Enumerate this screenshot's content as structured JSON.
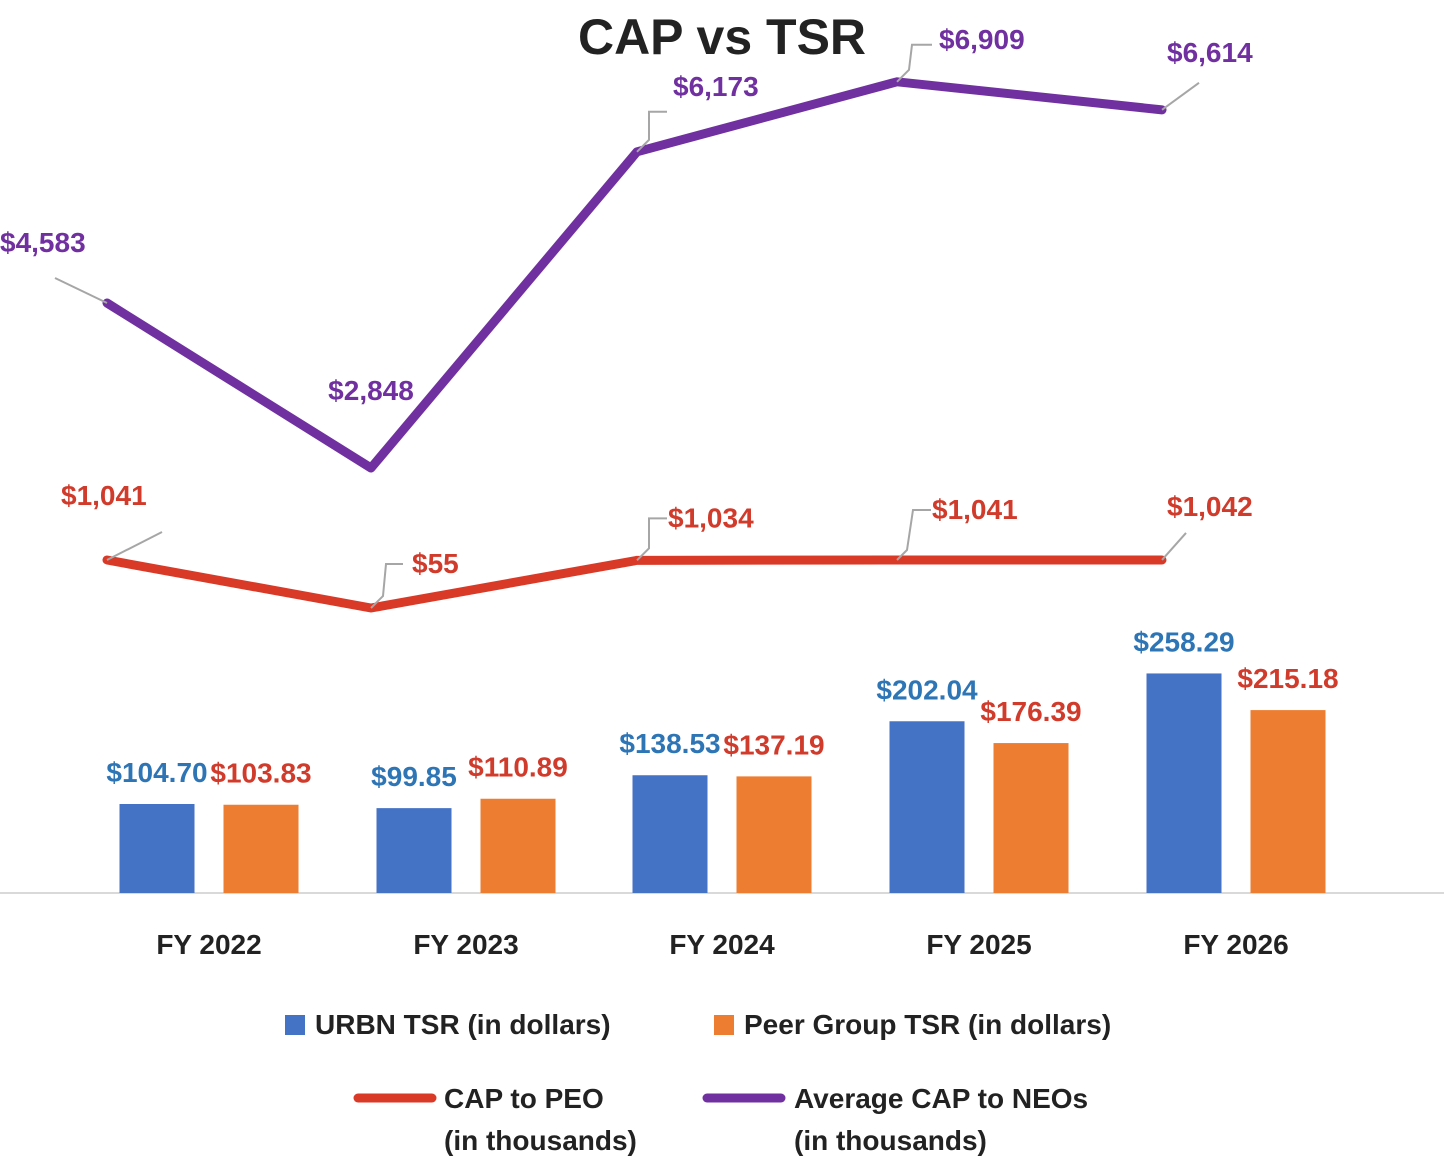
{
  "chart_data": {
    "type": "bar+line",
    "title": "CAP vs TSR",
    "categories": [
      "FY 2022",
      "FY 2023",
      "FY 2024",
      "FY 2025",
      "FY 2026"
    ],
    "bar_series": [
      {
        "name": "URBN TSR (in dollars)",
        "color": "#4472C4",
        "label_color": "#2E75B6",
        "values": [
          104.7,
          99.85,
          138.53,
          202.04,
          258.29
        ],
        "labels": [
          "$104.70",
          "$99.85",
          "$138.53",
          "$202.04",
          "$258.29"
        ]
      },
      {
        "name": "Peer Group TSR (in dollars)",
        "color": "#ED7D31",
        "label_color": "#D03B2B",
        "values": [
          103.83,
          110.89,
          137.19,
          176.39,
          215.18
        ],
        "labels": [
          "$103.83",
          "$110.89",
          "$137.19",
          "$176.39",
          "$215.18"
        ]
      }
    ],
    "line_series": [
      {
        "name": "CAP to PEO",
        "name_line2": "(in thousands)",
        "color": "#D93A28",
        "label_color": "#D03B2B",
        "values": [
          1041,
          55,
          1034,
          1041,
          1042
        ],
        "labels": [
          "$1,041",
          "$55",
          "$1,034",
          "$1,041",
          "$1,042"
        ]
      },
      {
        "name": "Average CAP to NEOs",
        "name_line2": "(in thousands)",
        "color": "#7030A0",
        "label_color": "#7030A0",
        "values": [
          4583,
          2848,
          6173,
          6909,
          6614
        ],
        "labels": [
          "$4,583",
          "$2,848",
          "$6,173",
          "$6,909",
          "$6,614"
        ]
      }
    ],
    "legend_position": "bottom",
    "grid": false
  }
}
